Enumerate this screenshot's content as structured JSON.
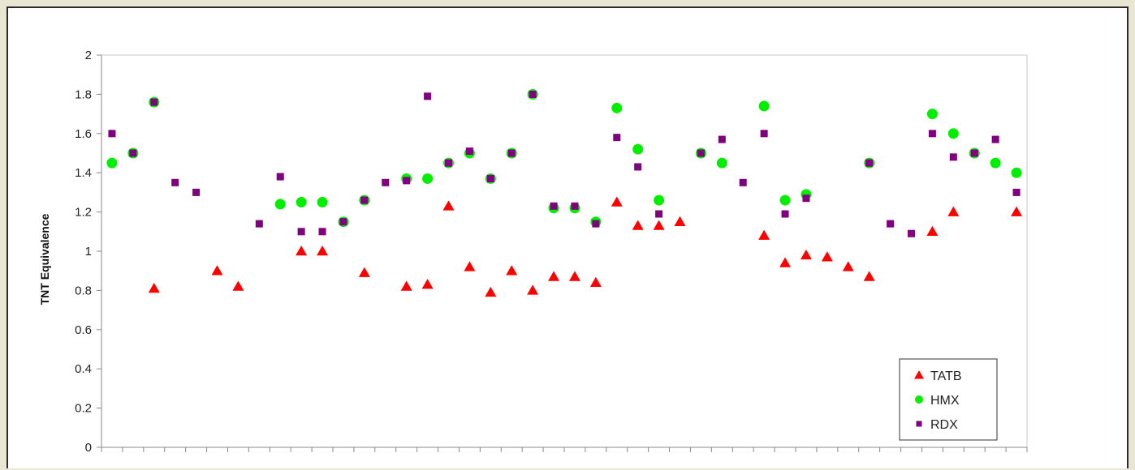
{
  "chart_data": {
    "type": "scatter",
    "title": "",
    "xlabel": "",
    "ylabel": "TNT Equivalence",
    "ylim": [
      0,
      2
    ],
    "yticks": [
      "0",
      "0.2",
      "0.4",
      "0.6",
      "0.8",
      "1",
      "1.2",
      "1.4",
      "1.6",
      "1.8",
      "2"
    ],
    "x_count": 44,
    "grid": false,
    "legend_position": "bottom-right",
    "series": [
      {
        "name": "TATB",
        "marker": "triangle",
        "color": "#ff0000",
        "points": [
          [
            3,
            0.81
          ],
          [
            6,
            0.9
          ],
          [
            7,
            0.82
          ],
          [
            10,
            1.0
          ],
          [
            11,
            1.0
          ],
          [
            13,
            0.89
          ],
          [
            15,
            0.82
          ],
          [
            16,
            0.83
          ],
          [
            17,
            1.23
          ],
          [
            18,
            0.92
          ],
          [
            19,
            0.79
          ],
          [
            20,
            0.9
          ],
          [
            21,
            0.8
          ],
          [
            22,
            0.87
          ],
          [
            23,
            0.87
          ],
          [
            24,
            0.84
          ],
          [
            25,
            1.25
          ],
          [
            26,
            1.13
          ],
          [
            27,
            1.13
          ],
          [
            28,
            1.15
          ],
          [
            32,
            1.08
          ],
          [
            33,
            0.94
          ],
          [
            34,
            0.98
          ],
          [
            35,
            0.97
          ],
          [
            36,
            0.92
          ],
          [
            37,
            0.87
          ],
          [
            40,
            1.1
          ],
          [
            41,
            1.2
          ],
          [
            44,
            1.2
          ]
        ]
      },
      {
        "name": "HMX",
        "marker": "circle",
        "color": "#00ee00",
        "points": [
          [
            1,
            1.45
          ],
          [
            2,
            1.5
          ],
          [
            3,
            1.76
          ],
          [
            9,
            1.24
          ],
          [
            10,
            1.25
          ],
          [
            11,
            1.25
          ],
          [
            12,
            1.15
          ],
          [
            13,
            1.26
          ],
          [
            15,
            1.37
          ],
          [
            16,
            1.37
          ],
          [
            17,
            1.45
          ],
          [
            18,
            1.5
          ],
          [
            19,
            1.37
          ],
          [
            20,
            1.5
          ],
          [
            21,
            1.8
          ],
          [
            22,
            1.22
          ],
          [
            23,
            1.22
          ],
          [
            24,
            1.15
          ],
          [
            25,
            1.73
          ],
          [
            26,
            1.52
          ],
          [
            27,
            1.26
          ],
          [
            29,
            1.5
          ],
          [
            30,
            1.45
          ],
          [
            32,
            1.74
          ],
          [
            33,
            1.26
          ],
          [
            34,
            1.29
          ],
          [
            37,
            1.45
          ],
          [
            40,
            1.7
          ],
          [
            41,
            1.6
          ],
          [
            42,
            1.5
          ],
          [
            43,
            1.45
          ],
          [
            44,
            1.4
          ]
        ]
      },
      {
        "name": "RDX",
        "marker": "square",
        "color": "#800080",
        "points": [
          [
            1,
            1.6
          ],
          [
            2,
            1.5
          ],
          [
            3,
            1.76
          ],
          [
            4,
            1.35
          ],
          [
            5,
            1.3
          ],
          [
            9,
            1.38
          ],
          [
            10,
            1.1
          ],
          [
            11,
            1.1
          ],
          [
            12,
            1.15
          ],
          [
            13,
            1.26
          ],
          [
            14,
            1.35
          ],
          [
            15,
            1.36
          ],
          [
            16,
            1.79
          ],
          [
            17,
            1.45
          ],
          [
            18,
            1.51
          ],
          [
            19,
            1.37
          ],
          [
            20,
            1.5
          ],
          [
            21,
            1.8
          ],
          [
            22,
            1.23
          ],
          [
            23,
            1.23
          ],
          [
            24,
            1.14
          ],
          [
            25,
            1.58
          ],
          [
            26,
            1.43
          ],
          [
            27,
            1.19
          ],
          [
            29,
            1.5
          ],
          [
            30,
            1.57
          ],
          [
            31,
            1.35
          ],
          [
            32,
            1.6
          ],
          [
            33,
            1.19
          ],
          [
            34,
            1.27
          ],
          [
            37,
            1.45
          ],
          [
            38,
            1.14
          ],
          [
            39,
            1.09
          ],
          [
            40,
            1.6
          ],
          [
            41,
            1.48
          ],
          [
            42,
            1.5
          ],
          [
            43,
            1.57
          ],
          [
            44,
            1.3
          ],
          [
            8,
            1.14
          ]
        ]
      }
    ]
  }
}
